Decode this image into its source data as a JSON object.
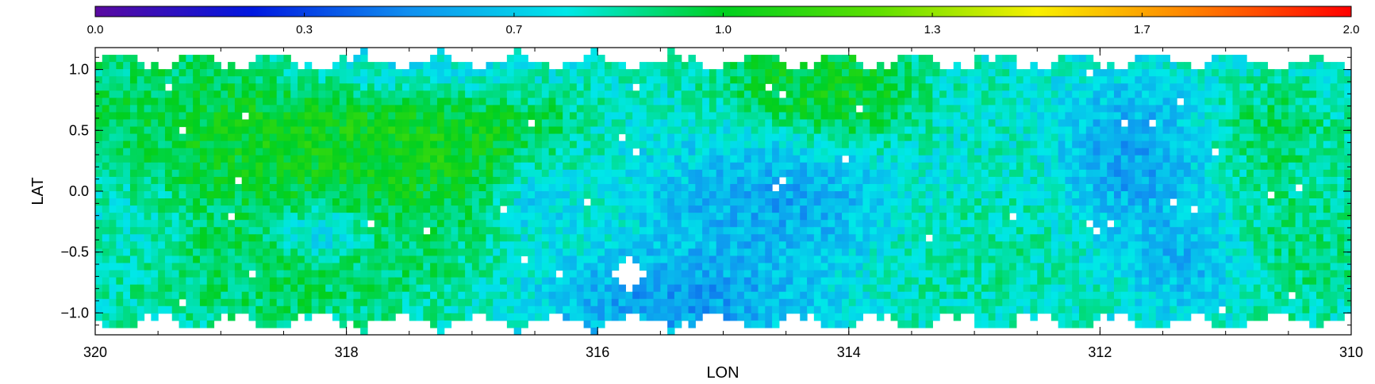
{
  "chart_data": {
    "type": "heatmap",
    "title": "",
    "xlabel": "LON",
    "ylabel": "LAT",
    "xlim": [
      320,
      310
    ],
    "ylim": [
      -1.18,
      1.18
    ],
    "x_ticks": [
      {
        "value": 320,
        "label": "320"
      },
      {
        "value": 318,
        "label": "318"
      },
      {
        "value": 316,
        "label": "316"
      },
      {
        "value": 314,
        "label": "314"
      },
      {
        "value": 312,
        "label": "312"
      },
      {
        "value": 310,
        "label": "310"
      }
    ],
    "y_ticks": [
      {
        "value": 1.0,
        "label": "1.0"
      },
      {
        "value": 0.5,
        "label": "0.5"
      },
      {
        "value": 0.0,
        "label": "0.0"
      },
      {
        "value": -0.5,
        "label": "−0.5"
      },
      {
        "value": -1.0,
        "label": "−1.0"
      }
    ],
    "colorbar": {
      "range": [
        0.0,
        2.0
      ],
      "position": "top",
      "ticks": [
        {
          "value": 0.0,
          "label": "0.0"
        },
        {
          "value": 0.333,
          "label": "0.3"
        },
        {
          "value": 0.667,
          "label": "0.7"
        },
        {
          "value": 1.0,
          "label": "1.0"
        },
        {
          "value": 1.333,
          "label": "1.3"
        },
        {
          "value": 1.667,
          "label": "1.7"
        },
        {
          "value": 2.0,
          "label": "2.0"
        }
      ],
      "colors": [
        "#5a0aa0",
        "#0018e0",
        "#1090f0",
        "#00e8e8",
        "#00d020",
        "#60e000",
        "#f8f000",
        "#ff8000",
        "#ff0000"
      ]
    },
    "features": [
      {
        "lon": 319.0,
        "lat": 0.35,
        "radius_lon": 1.2,
        "radius_lat": 0.55,
        "value": 1.08
      },
      {
        "lon": 317.8,
        "lat": 0.55,
        "radius_lon": 1.4,
        "radius_lat": 0.45,
        "value": 1.18
      },
      {
        "lon": 317.2,
        "lat": 0.2,
        "radius_lon": 1.0,
        "radius_lat": 0.4,
        "value": 1.1
      },
      {
        "lon": 318.5,
        "lat": -0.6,
        "radius_lon": 1.3,
        "radius_lat": 0.45,
        "value": 1.02
      },
      {
        "lon": 319.6,
        "lat": 0.7,
        "radius_lon": 0.6,
        "radius_lat": 0.4,
        "value": 0.95
      },
      {
        "lon": 317.5,
        "lat": 0.95,
        "radius_lon": 1.0,
        "radius_lat": 0.25,
        "value": 0.55
      },
      {
        "lon": 314.3,
        "lat": 0.9,
        "radius_lon": 0.6,
        "radius_lat": 0.35,
        "value": 1.12
      },
      {
        "lon": 313.9,
        "lat": 0.7,
        "radius_lon": 0.4,
        "radius_lat": 0.3,
        "value": 1.05
      },
      {
        "lon": 315.4,
        "lat": -0.9,
        "radius_lon": 0.9,
        "radius_lat": 0.35,
        "value": 0.4
      },
      {
        "lon": 314.6,
        "lat": -0.1,
        "radius_lon": 0.9,
        "radius_lat": 0.45,
        "value": 0.45
      },
      {
        "lon": 318.2,
        "lat": -0.35,
        "radius_lon": 0.3,
        "radius_lat": 0.2,
        "value": 0.4
      },
      {
        "lon": 316.5,
        "lat": 0.0,
        "radius_lon": 0.3,
        "radius_lat": 0.3,
        "value": 0.45
      },
      {
        "lon": 311.8,
        "lat": 0.25,
        "radius_lon": 0.5,
        "radius_lat": 0.5,
        "value": 0.4
      },
      {
        "lon": 311.3,
        "lat": -0.55,
        "radius_lon": 0.4,
        "radius_lat": 0.35,
        "value": 0.5
      },
      {
        "lon": 312.8,
        "lat": 0.1,
        "radius_lon": 0.7,
        "radius_lat": 0.6,
        "value": 0.8
      },
      {
        "lon": 310.6,
        "lat": 0.5,
        "radius_lon": 0.4,
        "radius_lat": 0.3,
        "value": 1.0
      },
      {
        "lon": 310.4,
        "lat": -0.4,
        "radius_lon": 0.5,
        "radius_lat": 0.5,
        "value": 0.95
      },
      {
        "lon": 313.0,
        "lat": -0.5,
        "radius_lon": 0.6,
        "radius_lat": 0.4,
        "value": 0.9
      },
      {
        "lon": 315.7,
        "lat": 0.3,
        "radius_lon": 0.5,
        "radius_lat": 0.35,
        "value": 0.65
      },
      {
        "lon": 319.8,
        "lat": -0.2,
        "radius_lon": 0.5,
        "radius_lat": 0.5,
        "value": 0.7
      }
    ],
    "background_value": 0.78,
    "blank_regions": [
      {
        "lon": 315.75,
        "lat": -0.68,
        "radius_lon": 0.12,
        "radius_lat": 0.13
      }
    ]
  }
}
